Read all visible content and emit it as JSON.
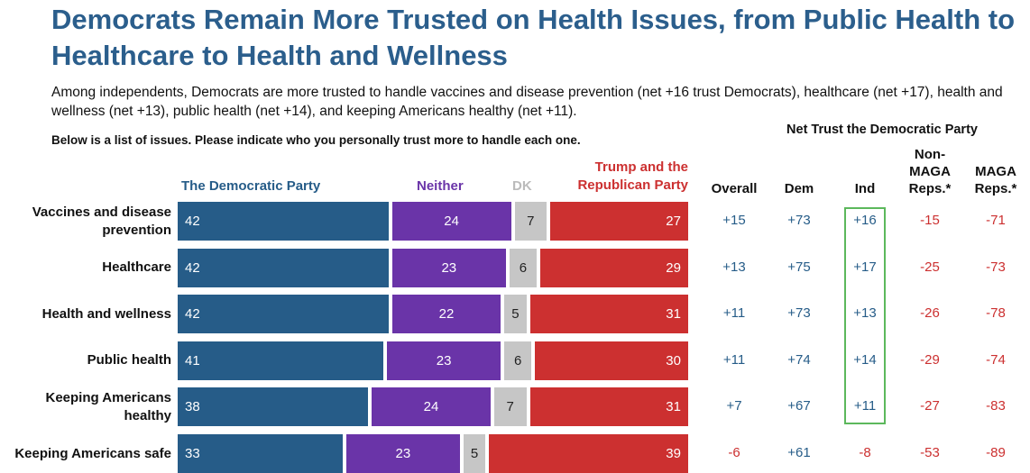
{
  "title": "Democrats Remain More Trusted on Health Issues, from Public Health to Healthcare to Health and Wellness",
  "subtitle": "Among independents, Democrats are more trusted to handle vaccines and disease prevention (net +16 trust Democrats), healthcare (net +17), health and wellness (net +13), public health (net +14), and keeping Americans healthy (net +11).",
  "question": "Below is a list of issues. Please indicate who you personally trust more to handle each one.",
  "net_header": "Net Trust the Democratic Party",
  "legend": {
    "dem": "The Democratic Party",
    "neither": "Neither",
    "dk": "DK",
    "rep": "Trump and the Republican Party"
  },
  "net_columns": [
    "Overall",
    "Dem",
    "Ind",
    "Non-MAGA Reps.*",
    "MAGA Reps.*"
  ],
  "colors": {
    "dem": "#265c88",
    "neither": "#6a34a8",
    "dk": "#c6c6c6",
    "rep": "#cc3030",
    "title": "#2b5e8c",
    "ind_highlight": "#5cb85c"
  },
  "chart_data": {
    "type": "bar",
    "orientation": "horizontal-stacked",
    "categories": [
      "Vaccines and disease prevention",
      "Healthcare",
      "Health and wellness",
      "Public health",
      "Keeping Americans healthy",
      "Keeping Americans safe"
    ],
    "series": [
      {
        "name": "The Democratic Party",
        "values": [
          42,
          42,
          42,
          41,
          38,
          33
        ]
      },
      {
        "name": "Neither",
        "values": [
          24,
          23,
          22,
          23,
          24,
          23
        ]
      },
      {
        "name": "DK",
        "values": [
          7,
          6,
          5,
          6,
          7,
          5
        ]
      },
      {
        "name": "Trump and the Republican Party",
        "values": [
          27,
          29,
          31,
          30,
          31,
          39
        ]
      }
    ],
    "net_trust": {
      "Overall": [
        "+15",
        "+13",
        "+11",
        "+11",
        "+7",
        "-6"
      ],
      "Dem": [
        "+73",
        "+75",
        "+73",
        "+74",
        "+67",
        "+61"
      ],
      "Ind": [
        "+16",
        "+17",
        "+13",
        "+14",
        "+11",
        "-8"
      ],
      "Non-MAGA Reps.*": [
        "-15",
        "-25",
        "-26",
        "-29",
        "-27",
        "-53"
      ],
      "MAGA Reps.*": [
        "-71",
        "-73",
        "-78",
        "-74",
        "-83",
        "-89"
      ]
    }
  }
}
